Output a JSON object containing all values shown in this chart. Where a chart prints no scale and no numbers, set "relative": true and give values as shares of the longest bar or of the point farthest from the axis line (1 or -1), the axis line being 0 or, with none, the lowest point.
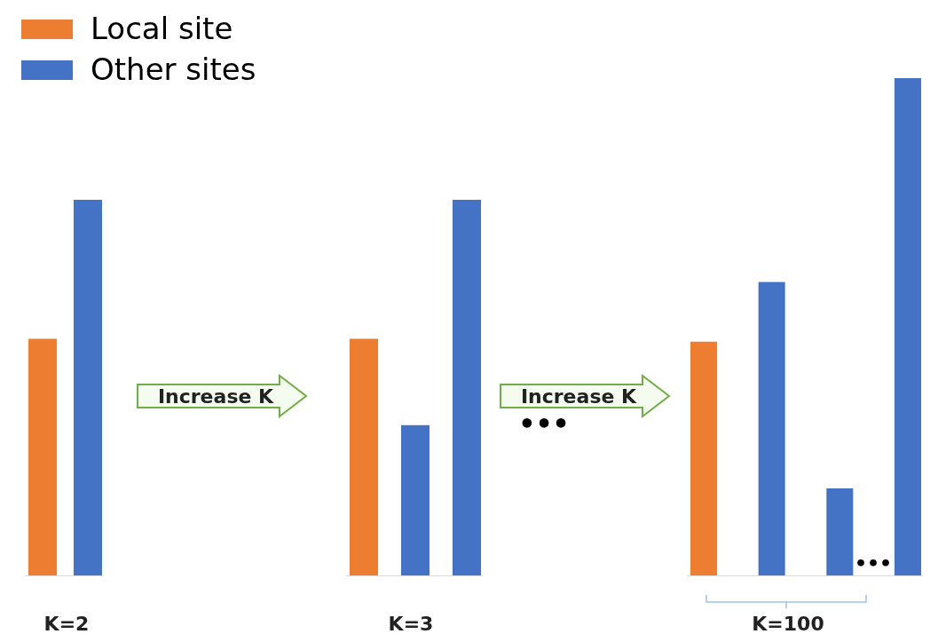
{
  "chart_data": [
    {
      "type": "bar",
      "relative": true,
      "xlabel": "K=2",
      "categories": [
        null
      ],
      "legend": "top right",
      "annotations": [
        "Increase K"
      ],
      "series": [
        {
          "name": "Local site",
          "color": "#ed7d31",
          "values": [
            0.63
          ]
        },
        {
          "name": "Other sites",
          "color": "#4472c4",
          "values": [
            1
          ]
        }
      ]
    },
    {
      "type": "bar",
      "relative": true,
      "xlabel": "K=3",
      "categories": [
        null,
        null,
        null
      ],
      "annotations": [
        "Increase K",
        "•••"
      ],
      "series": [
        {
          "colors": [
            "#ed7d31",
            "#4472c4",
            "#4472c4"
          ],
          "values": [
            0.63,
            0.4,
            1
          ]
        }
      ]
    },
    {
      "type": "bar",
      "relative": true,
      "xlabel": "K=100",
      "categories": [
        null,
        null,
        null,
        null
      ],
      "annotations": [
        "•••"
      ],
      "series": [
        {
          "colors": [
            "#ed7d31",
            "#4472c4",
            "#4472c4",
            "#4472c4"
          ],
          "values": [
            0.47,
            0.59,
            0.175,
            1
          ]
        }
      ]
    }
  ]
}
